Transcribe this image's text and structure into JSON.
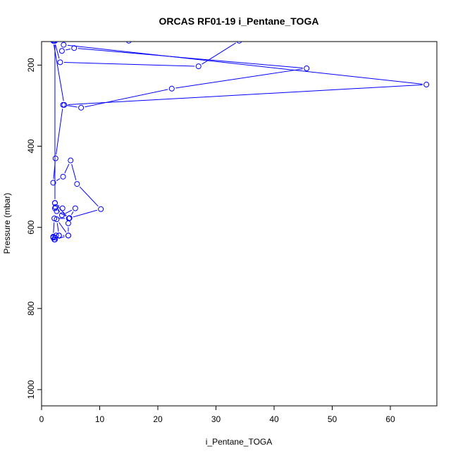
{
  "chart_data": {
    "type": "line",
    "title": "ORCAS RF01-19 i_Pentane_TOGA",
    "xlabel": "i_Pentane_TOGA",
    "ylabel": "Pressure (mbar)",
    "xlim": [
      0,
      68
    ],
    "ylim": [
      1040,
      142
    ],
    "y_reversed": true,
    "x_ticks": [
      0,
      10,
      20,
      30,
      40,
      50,
      60
    ],
    "y_ticks": [
      200,
      400,
      600,
      800,
      1000
    ],
    "series_color": "#0000ff",
    "grid": false,
    "legend": "none",
    "series": [
      {
        "x": [
          2.0,
          2.3,
          2.3,
          2.3,
          3.6,
          2.3,
          4.7,
          2.2,
          2.0,
          3.0,
          2.6,
          4.6,
          2.3,
          2.2,
          2.0,
          2.3,
          2.5,
          3.0,
          4.6,
          4.6,
          4.8,
          5.8,
          3.5,
          2.4,
          2.6,
          4.8,
          10.2,
          6.1,
          5.0,
          3.7,
          2.0,
          2.4,
          3.7,
          6.8,
          22.4,
          45.6,
          5.6,
          3.5,
          3.8,
          66.2,
          3.9,
          2.0,
          2.2,
          3.2,
          27.0,
          34.0,
          15.0,
          2.3
        ],
        "y": [
          140,
          140,
          540,
          553,
          553,
          540,
          578,
          578,
          623,
          620,
          580,
          620,
          630,
          630,
          625,
          625,
          620,
          620,
          620,
          590,
          577,
          553,
          570,
          550,
          560,
          577,
          555,
          493,
          435,
          475,
          490,
          430,
          298,
          305,
          258,
          208,
          158,
          165,
          150,
          248,
          298,
          140,
          140,
          193,
          203,
          140,
          140,
          140
        ]
      }
    ]
  }
}
